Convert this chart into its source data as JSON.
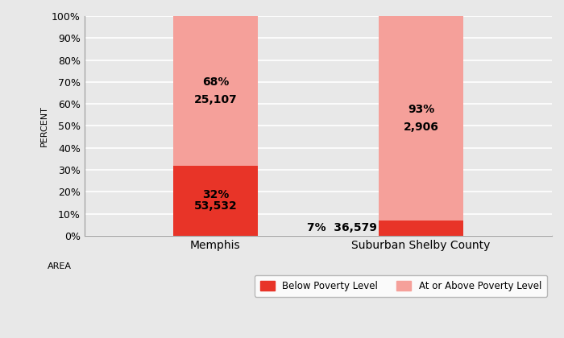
{
  "categories": [
    "Memphis",
    "Suburban Shelby County"
  ],
  "below_poverty_pct": [
    32,
    7
  ],
  "above_poverty_pct": [
    68,
    93
  ],
  "below_poverty_n": [
    "53,532",
    "36,579"
  ],
  "above_poverty_n": [
    "25,107",
    "2,906"
  ],
  "below_poverty_color": "#e83428",
  "above_poverty_color": "#f5a09a",
  "background_color": "#e8e8e8",
  "plot_bg_color": "#e8e8e8",
  "bar_width": 0.18,
  "x_positions": [
    0.28,
    0.72
  ],
  "xlim": [
    0,
    1
  ],
  "ylim": [
    0,
    100
  ],
  "yticks": [
    0,
    10,
    20,
    30,
    40,
    50,
    60,
    70,
    80,
    90,
    100
  ],
  "ylabel": "PERCENT",
  "xlabel": "AREA",
  "legend_labels": [
    "Below Poverty Level",
    "At or Above Poverty Level"
  ],
  "annotation_fontsize": 10,
  "tick_fontsize": 9,
  "cat_fontsize": 10
}
